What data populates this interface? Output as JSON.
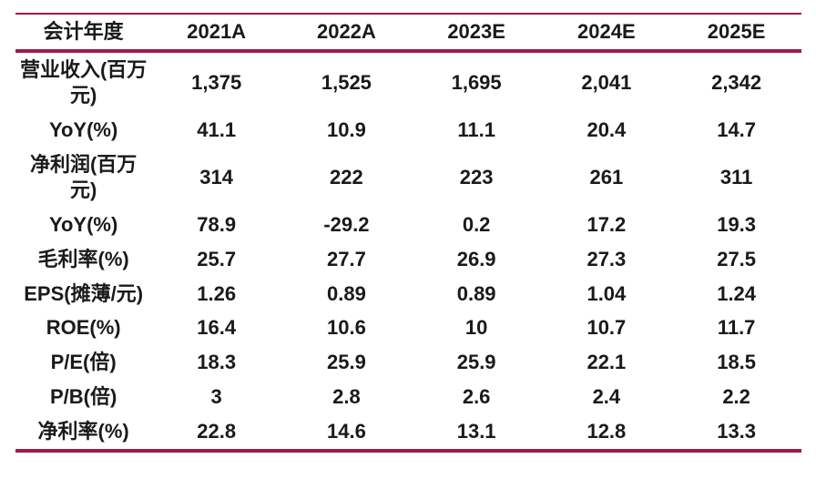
{
  "table": {
    "accent_color": "#9d1d45",
    "text_color": "#1a1a1a",
    "background_color": "#ffffff",
    "columns": [
      "会计年度",
      "2021A",
      "2022A",
      "2023E",
      "2024E",
      "2025E"
    ],
    "rows": [
      {
        "label": "营业收入(百万元)",
        "values": [
          "1,375",
          "1,525",
          "1,695",
          "2,041",
          "2,342"
        ]
      },
      {
        "label": "YoY(%)",
        "values": [
          "41.1",
          "10.9",
          "11.1",
          "20.4",
          "14.7"
        ]
      },
      {
        "label": "净利润(百万元)",
        "values": [
          "314",
          "222",
          "223",
          "261",
          "311"
        ]
      },
      {
        "label": "YoY(%)",
        "values": [
          "78.9",
          "-29.2",
          "0.2",
          "17.2",
          "19.3"
        ]
      },
      {
        "label": "毛利率(%)",
        "values": [
          "25.7",
          "27.7",
          "26.9",
          "27.3",
          "27.5"
        ]
      },
      {
        "label": "EPS(摊薄/元)",
        "values": [
          "1.26",
          "0.89",
          "0.89",
          "1.04",
          "1.24"
        ]
      },
      {
        "label": "ROE(%)",
        "values": [
          "16.4",
          "10.6",
          "10",
          "10.7",
          "11.7"
        ]
      },
      {
        "label": "P/E(倍)",
        "values": [
          "18.3",
          "25.9",
          "25.9",
          "22.1",
          "18.5"
        ]
      },
      {
        "label": "P/B(倍)",
        "values": [
          "3",
          "2.8",
          "2.6",
          "2.4",
          "2.2"
        ]
      },
      {
        "label": "净利率(%)",
        "values": [
          "22.8",
          "14.6",
          "13.1",
          "12.8",
          "13.3"
        ]
      }
    ]
  },
  "chart_data": {
    "type": "table",
    "columns": [
      "会计年度",
      "2021A",
      "2022A",
      "2023E",
      "2024E",
      "2025E"
    ],
    "rows": [
      [
        "营业收入(百万元)",
        1375,
        1525,
        1695,
        2041,
        2342
      ],
      [
        "YoY(%)",
        41.1,
        10.9,
        11.1,
        20.4,
        14.7
      ],
      [
        "净利润(百万元)",
        314,
        222,
        223,
        261,
        311
      ],
      [
        "YoY(%)",
        78.9,
        -29.2,
        0.2,
        17.2,
        19.3
      ],
      [
        "毛利率(%)",
        25.7,
        27.7,
        26.9,
        27.3,
        27.5
      ],
      [
        "EPS(摊薄/元)",
        1.26,
        0.89,
        0.89,
        1.04,
        1.24
      ],
      [
        "ROE(%)",
        16.4,
        10.6,
        10,
        10.7,
        11.7
      ],
      [
        "P/E(倍)",
        18.3,
        25.9,
        25.9,
        22.1,
        18.5
      ],
      [
        "P/B(倍)",
        3,
        2.8,
        2.6,
        2.4,
        2.2
      ],
      [
        "净利率(%)",
        22.8,
        14.6,
        13.1,
        12.8,
        13.3
      ]
    ],
    "layout": {
      "grid": false,
      "rules": "three-line table (top, under-header, bottom)",
      "rule_color": "#9d1d45"
    }
  }
}
